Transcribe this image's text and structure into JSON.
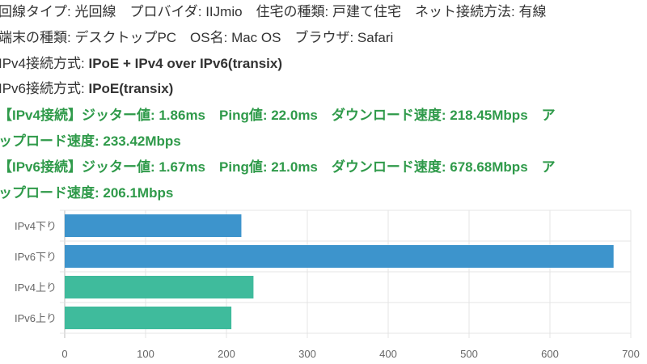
{
  "info": {
    "line1": "回線タイプ: 光回線　プロバイダ: IIJmio　住宅の種類: 戸建て住宅　ネット接続方法: 有線",
    "line2": "端末の種類: デスクトップPC　OS名: Mac OS　ブラウザ: Safari",
    "ipv4_label": "IPv4接続方式: ",
    "ipv4_value": "IPoE + IPv4 over IPv6(transix)",
    "ipv6_label": "IPv6接続方式: ",
    "ipv6_value": "IPoE(transix)",
    "ipv4_result_1": "【IPv4接続】ジッター値: 1.86ms　Ping値: 22.0ms　ダウンロード速度: 218.45Mbps　ア",
    "ipv4_result_2": "ップロード速度: 233.42Mbps",
    "ipv6_result_1": "【IPv6接続】ジッター値: 1.67ms　Ping値: 21.0ms　ダウンロード速度: 678.68Mbps　ア",
    "ipv6_result_2": "ップロード速度: 206.1Mbps"
  },
  "chart_data": {
    "type": "bar",
    "orientation": "horizontal",
    "categories": [
      "IPv4下り",
      "IPv6下り",
      "IPv4上り",
      "IPv6上り"
    ],
    "values": [
      218.45,
      678.68,
      233.42,
      206.1
    ],
    "colors": [
      "#3d94cc",
      "#3d94cc",
      "#3fbb9c",
      "#3fbb9c"
    ],
    "xlim": [
      0,
      700
    ],
    "xticks": [
      0,
      100,
      200,
      300,
      400,
      500,
      600,
      700
    ],
    "grid": true
  }
}
